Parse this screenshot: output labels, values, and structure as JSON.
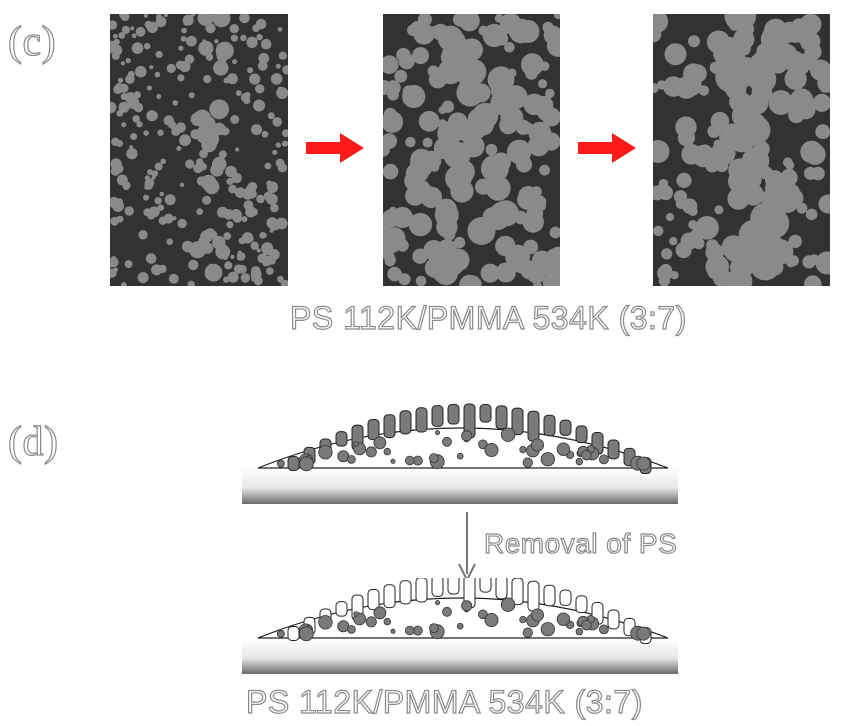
{
  "labels": {
    "panel_c": "(c)",
    "panel_d": "(d)"
  },
  "captions": {
    "top": "PS 112K/PMMA 534K (3:7)",
    "bottom": "PS 112K/PMMA 534K (3:7)",
    "removal": "Removal of PS"
  },
  "colors": {
    "panel_background": "#323232",
    "droplet": "#8a8a8a",
    "arrow": "#ff1a1a",
    "pore_fill": "#7a7a7a"
  },
  "icons": {
    "process_arrow": "right-arrow-icon",
    "removal_arrow": "down-arrow-icon"
  }
}
